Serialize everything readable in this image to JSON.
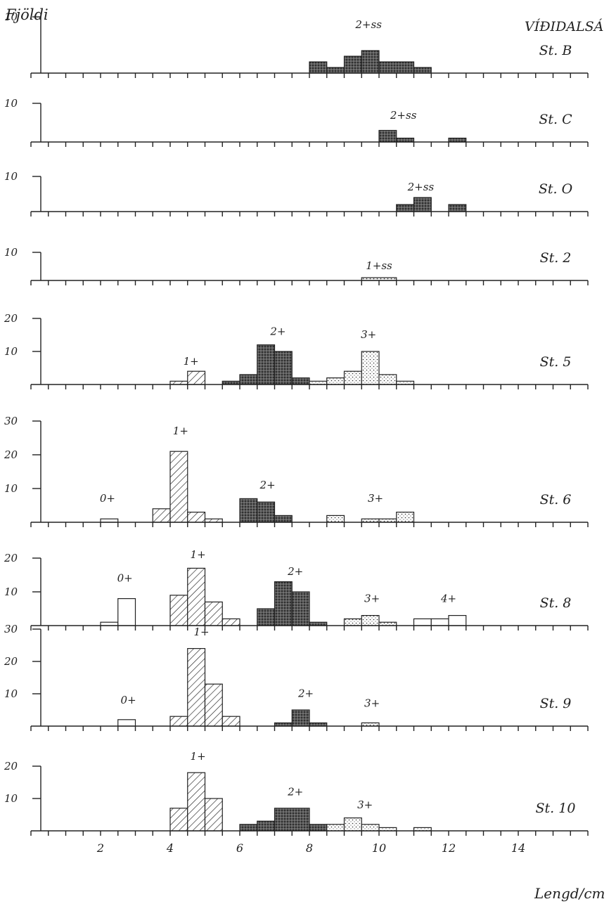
{
  "ylabel": "Fjöldi",
  "xlabel": "Lengd/cm",
  "title": "VÍÐIDALSÁ",
  "x_tick_labels": [
    "2",
    "4",
    "6",
    "8",
    "10",
    "12",
    "14"
  ],
  "chart_data": [
    {
      "type": "bar",
      "station": "St. B",
      "ymax_label": "10",
      "x_range": [
        0,
        16
      ],
      "bars": [
        {
          "x0": 8.0,
          "x1": 8.5,
          "value": 2,
          "group": "2+ss"
        },
        {
          "x0": 8.5,
          "x1": 9.0,
          "value": 1,
          "group": "2+ss"
        },
        {
          "x0": 9.0,
          "x1": 9.5,
          "value": 3,
          "group": "2+ss"
        },
        {
          "x0": 9.5,
          "x1": 10.0,
          "value": 4,
          "group": "2+ss"
        },
        {
          "x0": 10.0,
          "x1": 11.0,
          "value": 2,
          "group": "2+ss"
        },
        {
          "x0": 11.0,
          "x1": 11.5,
          "value": 1,
          "group": "2+ss"
        }
      ],
      "annotations": [
        {
          "text": "2+ss",
          "x": 9.7,
          "y": 8
        }
      ]
    },
    {
      "type": "bar",
      "station": "St. C",
      "ymax_label": "10",
      "x_range": [
        0,
        16
      ],
      "bars": [
        {
          "x0": 10.0,
          "x1": 10.5,
          "value": 3,
          "group": "2+ss"
        },
        {
          "x0": 10.5,
          "x1": 11.0,
          "value": 1,
          "group": "2+ss"
        },
        {
          "x0": 12.0,
          "x1": 12.5,
          "value": 1,
          "group": "2+ss"
        }
      ],
      "annotations": [
        {
          "text": "2+ss",
          "x": 10.7,
          "y": 6
        }
      ]
    },
    {
      "type": "bar",
      "station": "St. O",
      "ymax_label": "10",
      "x_range": [
        0,
        16
      ],
      "bars": [
        {
          "x0": 10.5,
          "x1": 11.0,
          "value": 2,
          "group": "2+ss"
        },
        {
          "x0": 11.0,
          "x1": 11.5,
          "value": 4,
          "group": "2+ss"
        },
        {
          "x0": 12.0,
          "x1": 12.5,
          "value": 2,
          "group": "2+ss"
        }
      ],
      "annotations": [
        {
          "text": "2+ss",
          "x": 11.2,
          "y": 6
        }
      ]
    },
    {
      "type": "bar",
      "station": "St. 2",
      "ymax_label": "10",
      "x_range": [
        0,
        16
      ],
      "bars": [
        {
          "x0": 9.5,
          "x1": 10.5,
          "value": 1,
          "group": "1+ss"
        }
      ],
      "annotations": [
        {
          "text": "1+ss",
          "x": 10.0,
          "y": 4
        }
      ]
    },
    {
      "type": "bar",
      "station": "St. 5",
      "y_tick_labels": [
        "20",
        "10"
      ],
      "ymax": 20,
      "x_range": [
        0,
        16
      ],
      "bars": [
        {
          "x0": 4.0,
          "x1": 4.5,
          "value": 1,
          "group": "1+"
        },
        {
          "x0": 4.5,
          "x1": 5.0,
          "value": 4,
          "group": "1+"
        },
        {
          "x0": 5.5,
          "x1": 6.0,
          "value": 1,
          "group": "2+"
        },
        {
          "x0": 6.0,
          "x1": 6.5,
          "value": 3,
          "group": "2+"
        },
        {
          "x0": 6.5,
          "x1": 7.0,
          "value": 12,
          "group": "2+"
        },
        {
          "x0": 7.0,
          "x1": 7.5,
          "value": 10,
          "group": "2+"
        },
        {
          "x0": 7.5,
          "x1": 8.0,
          "value": 2,
          "group": "2+"
        },
        {
          "x0": 8.0,
          "x1": 8.5,
          "value": 1,
          "group": "3+"
        },
        {
          "x0": 8.5,
          "x1": 9.0,
          "value": 2,
          "group": "3+"
        },
        {
          "x0": 9.0,
          "x1": 9.5,
          "value": 4,
          "group": "3+"
        },
        {
          "x0": 9.5,
          "x1": 10.0,
          "value": 10,
          "group": "3+"
        },
        {
          "x0": 10.0,
          "x1": 10.5,
          "value": 3,
          "group": "3+"
        },
        {
          "x0": 10.5,
          "x1": 11.0,
          "value": 1,
          "group": "3+"
        }
      ],
      "annotations": [
        {
          "text": "1+",
          "x": 4.6,
          "y": 6
        },
        {
          "text": "2+",
          "x": 7.1,
          "y": 15
        },
        {
          "text": "3+",
          "x": 9.7,
          "y": 14
        }
      ]
    },
    {
      "type": "bar",
      "station": "St. 6",
      "y_tick_labels": [
        "30",
        "20",
        "10"
      ],
      "ymax": 30,
      "x_range": [
        0,
        16
      ],
      "bars": [
        {
          "x0": 2.0,
          "x1": 2.5,
          "value": 1,
          "group": "0+"
        },
        {
          "x0": 3.5,
          "x1": 4.0,
          "value": 4,
          "group": "1+"
        },
        {
          "x0": 4.0,
          "x1": 4.5,
          "value": 21,
          "group": "1+"
        },
        {
          "x0": 4.5,
          "x1": 5.0,
          "value": 3,
          "group": "1+"
        },
        {
          "x0": 5.0,
          "x1": 5.5,
          "value": 1,
          "group": "1+"
        },
        {
          "x0": 6.0,
          "x1": 6.5,
          "value": 7,
          "group": "2+"
        },
        {
          "x0": 6.5,
          "x1": 7.0,
          "value": 6,
          "group": "2+"
        },
        {
          "x0": 7.0,
          "x1": 7.5,
          "value": 2,
          "group": "2+"
        },
        {
          "x0": 8.5,
          "x1": 9.0,
          "value": 2,
          "group": "3+"
        },
        {
          "x0": 9.5,
          "x1": 10.0,
          "value": 1,
          "group": "3+"
        },
        {
          "x0": 10.0,
          "x1": 10.5,
          "value": 1,
          "group": "3+"
        },
        {
          "x0": 10.5,
          "x1": 11.0,
          "value": 3,
          "group": "3+"
        }
      ],
      "annotations": [
        {
          "text": "0+",
          "x": 2.2,
          "y": 6
        },
        {
          "text": "1+",
          "x": 4.3,
          "y": 26
        },
        {
          "text": "2+",
          "x": 6.8,
          "y": 10
        },
        {
          "text": "3+",
          "x": 9.9,
          "y": 6
        }
      ]
    },
    {
      "type": "bar",
      "station": "St. 8",
      "y_tick_labels": [
        "20",
        "10"
      ],
      "ymax": 20,
      "x_range": [
        0,
        16
      ],
      "bars": [
        {
          "x0": 2.0,
          "x1": 2.5,
          "value": 1,
          "group": "0+"
        },
        {
          "x0": 2.5,
          "x1": 3.0,
          "value": 8,
          "group": "0+"
        },
        {
          "x0": 4.0,
          "x1": 4.5,
          "value": 9,
          "group": "1+"
        },
        {
          "x0": 4.5,
          "x1": 5.0,
          "value": 17,
          "group": "1+"
        },
        {
          "x0": 5.0,
          "x1": 5.5,
          "value": 7,
          "group": "1+"
        },
        {
          "x0": 5.5,
          "x1": 6.0,
          "value": 2,
          "group": "1+"
        },
        {
          "x0": 6.5,
          "x1": 7.0,
          "value": 5,
          "group": "2+"
        },
        {
          "x0": 7.0,
          "x1": 7.5,
          "value": 13,
          "group": "2+"
        },
        {
          "x0": 7.5,
          "x1": 8.0,
          "value": 10,
          "group": "2+"
        },
        {
          "x0": 8.0,
          "x1": 8.5,
          "value": 1,
          "group": "2+"
        },
        {
          "x0": 9.0,
          "x1": 9.5,
          "value": 2,
          "group": "3+"
        },
        {
          "x0": 9.5,
          "x1": 10.0,
          "value": 3,
          "group": "3+"
        },
        {
          "x0": 10.0,
          "x1": 10.5,
          "value": 1,
          "group": "3+"
        },
        {
          "x0": 11.0,
          "x1": 11.5,
          "value": 2,
          "group": "4+"
        },
        {
          "x0": 11.5,
          "x1": 12.0,
          "value": 2,
          "group": "4+"
        },
        {
          "x0": 12.0,
          "x1": 12.5,
          "value": 3,
          "group": "4+"
        }
      ],
      "annotations": [
        {
          "text": "0+",
          "x": 2.7,
          "y": 13
        },
        {
          "text": "1+",
          "x": 4.8,
          "y": 20
        },
        {
          "text": "2+",
          "x": 7.6,
          "y": 15
        },
        {
          "text": "3+",
          "x": 9.8,
          "y": 7
        },
        {
          "text": "4+",
          "x": 12.0,
          "y": 7
        }
      ]
    },
    {
      "type": "bar",
      "station": "St. 9",
      "y_tick_labels": [
        "30",
        "20",
        "10"
      ],
      "ymax": 30,
      "x_range": [
        0,
        16
      ],
      "bars": [
        {
          "x0": 2.5,
          "x1": 3.0,
          "value": 2,
          "group": "0+"
        },
        {
          "x0": 4.0,
          "x1": 4.5,
          "value": 3,
          "group": "1+"
        },
        {
          "x0": 4.5,
          "x1": 5.0,
          "value": 24,
          "group": "1+"
        },
        {
          "x0": 5.0,
          "x1": 5.5,
          "value": 13,
          "group": "1+"
        },
        {
          "x0": 5.5,
          "x1": 6.0,
          "value": 3,
          "group": "1+"
        },
        {
          "x0": 7.0,
          "x1": 7.5,
          "value": 1,
          "group": "2+"
        },
        {
          "x0": 7.5,
          "x1": 8.0,
          "value": 5,
          "group": "2+"
        },
        {
          "x0": 8.0,
          "x1": 8.5,
          "value": 1,
          "group": "2+"
        },
        {
          "x0": 9.5,
          "x1": 10.0,
          "value": 1,
          "group": "3+"
        }
      ],
      "annotations": [
        {
          "text": "0+",
          "x": 2.8,
          "y": 7
        },
        {
          "text": "1+",
          "x": 4.9,
          "y": 28
        },
        {
          "text": "2+",
          "x": 7.9,
          "y": 9
        },
        {
          "text": "3+",
          "x": 9.8,
          "y": 6
        }
      ]
    },
    {
      "type": "bar",
      "station": "St. 10",
      "y_tick_labels": [
        "20",
        "10"
      ],
      "ymax": 20,
      "x_range": [
        0,
        16
      ],
      "bars": [
        {
          "x0": 4.0,
          "x1": 4.5,
          "value": 7,
          "group": "1+"
        },
        {
          "x0": 4.5,
          "x1": 5.0,
          "value": 18,
          "group": "1+"
        },
        {
          "x0": 5.0,
          "x1": 5.5,
          "value": 10,
          "group": "1+"
        },
        {
          "x0": 6.0,
          "x1": 6.5,
          "value": 2,
          "group": "2+"
        },
        {
          "x0": 6.5,
          "x1": 7.0,
          "value": 3,
          "group": "2+"
        },
        {
          "x0": 7.0,
          "x1": 8.0,
          "value": 7,
          "group": "2+"
        },
        {
          "x0": 8.0,
          "x1": 8.5,
          "value": 2,
          "group": "2+"
        },
        {
          "x0": 8.5,
          "x1": 9.0,
          "value": 2,
          "group": "3+"
        },
        {
          "x0": 9.0,
          "x1": 9.5,
          "value": 4,
          "group": "3+"
        },
        {
          "x0": 9.5,
          "x1": 10.0,
          "value": 2,
          "group": "3+"
        },
        {
          "x0": 10.0,
          "x1": 10.5,
          "value": 1,
          "group": "3+"
        },
        {
          "x0": 11.0,
          "x1": 11.5,
          "value": 1,
          "group": "3+"
        }
      ],
      "annotations": [
        {
          "text": "1+",
          "x": 4.8,
          "y": 22
        },
        {
          "text": "2+",
          "x": 7.6,
          "y": 11
        },
        {
          "text": "3+",
          "x": 9.6,
          "y": 7
        }
      ]
    }
  ]
}
